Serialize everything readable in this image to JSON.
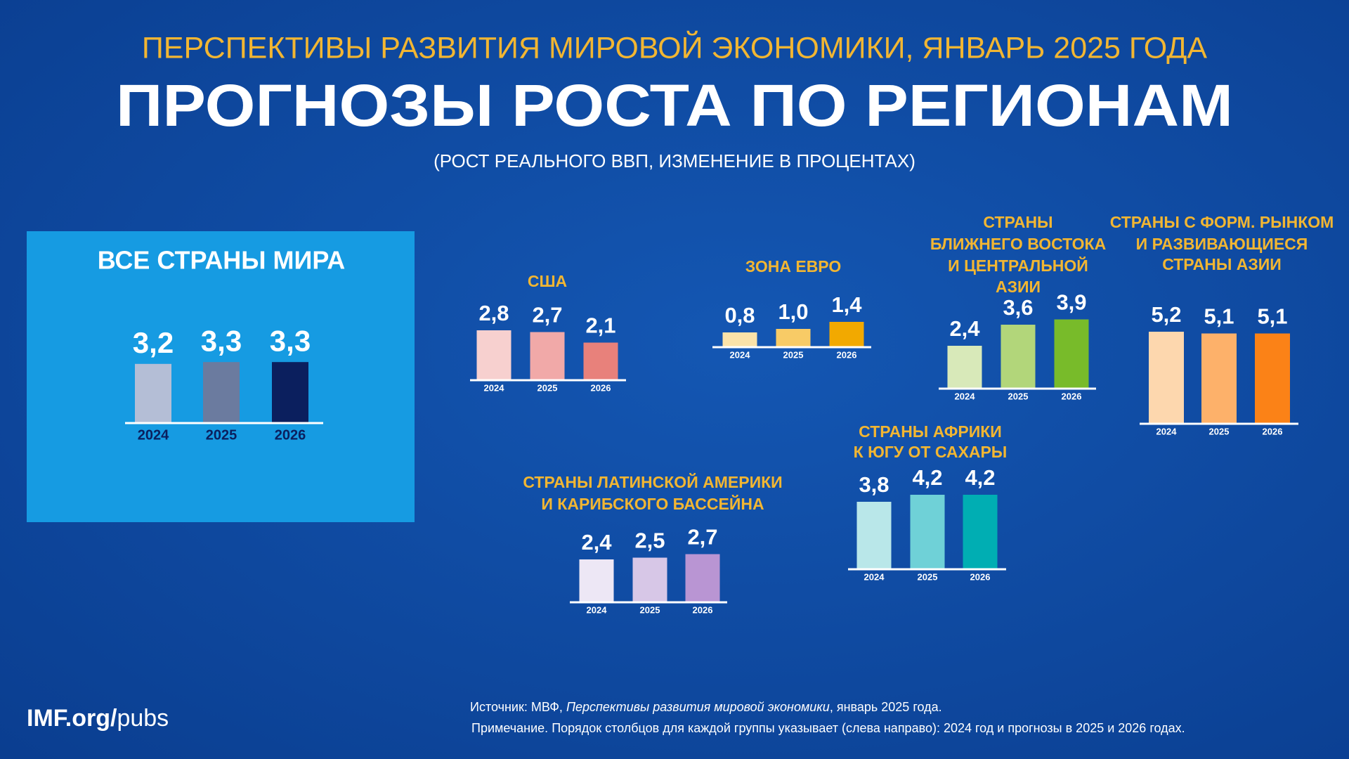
{
  "header": {
    "kicker": "ПЕРСПЕКТИВЫ РАЗВИТИЯ МИРОВОЙ ЭКОНОМИКИ, ЯНВАРЬ 2025 ГОДА",
    "title": "ПРОГНОЗЫ РОСТА ПО РЕГИОНАМ",
    "subtitle": "(РОСТ РЕАЛЬНОГО ВВП, ИЗМЕНЕНИЕ В ПРОЦЕНТАХ)"
  },
  "chart_data": [
    {
      "type": "bar",
      "title": [
        "ВСЕ СТРАНЫ МИРА"
      ],
      "categories": [
        "2024",
        "2025",
        "2026"
      ],
      "values": [
        3.2,
        3.3,
        3.3
      ],
      "value_labels": [
        "3,2",
        "3,3",
        "3,3"
      ],
      "colors": [
        "#b4bed6",
        "#6b7b9f",
        "#0b1f5e"
      ]
    },
    {
      "type": "bar",
      "title": [
        "США"
      ],
      "categories": [
        "2024",
        "2025",
        "2026"
      ],
      "values": [
        2.8,
        2.7,
        2.1
      ],
      "value_labels": [
        "2,8",
        "2,7",
        "2,1"
      ],
      "colors": [
        "#f7d0cf",
        "#f1a9a8",
        "#e8817b"
      ]
    },
    {
      "type": "bar",
      "title": [
        "ЗОНА ЕВРО"
      ],
      "categories": [
        "2024",
        "2025",
        "2026"
      ],
      "values": [
        0.8,
        1.0,
        1.4
      ],
      "value_labels": [
        "0,8",
        "1,0",
        "1,4"
      ],
      "colors": [
        "#fbe3a9",
        "#f8cb66",
        "#f2a900"
      ]
    },
    {
      "type": "bar",
      "title": [
        "СТРАНЫ",
        "БЛИЖНЕГО ВОСТОКА",
        "И ЦЕНТРАЛЬНОЙ",
        "АЗИИ"
      ],
      "categories": [
        "2024",
        "2025",
        "2026"
      ],
      "values": [
        2.4,
        3.6,
        3.9
      ],
      "value_labels": [
        "2,4",
        "3,6",
        "3,9"
      ],
      "colors": [
        "#d8e9b9",
        "#b2d67a",
        "#78bb2a"
      ]
    },
    {
      "type": "bar",
      "title": [
        "СТРАНЫ С ФОРМ. РЫНКОМ",
        "И РАЗВИВАЮЩИЕСЯ",
        "СТРАНЫ АЗИИ"
      ],
      "categories": [
        "2024",
        "2025",
        "2026"
      ],
      "values": [
        5.2,
        5.1,
        5.1
      ],
      "value_labels": [
        "5,2",
        "5,1",
        "5,1"
      ],
      "colors": [
        "#fdd7ae",
        "#fdb16a",
        "#fb8217"
      ]
    },
    {
      "type": "bar",
      "title": [
        "СТРАНЫ ЛАТИНСКОЙ АМЕРИКИ",
        "И КАРИБСКОГО БАССЕЙНА"
      ],
      "categories": [
        "2024",
        "2025",
        "2026"
      ],
      "values": [
        2.4,
        2.5,
        2.7
      ],
      "value_labels": [
        "2,4",
        "2,5",
        "2,7"
      ],
      "colors": [
        "#ede7f5",
        "#d7c7e7",
        "#b995d3"
      ]
    },
    {
      "type": "bar",
      "title": [
        "СТРАНЫ АФРИКИ",
        "К ЮГУ ОТ САХАРЫ"
      ],
      "categories": [
        "2024",
        "2025",
        "2026"
      ],
      "values": [
        3.8,
        4.2,
        4.2
      ],
      "value_labels": [
        "3,8",
        "4,2",
        "4,2"
      ],
      "colors": [
        "#b9e7e9",
        "#6fd1d7",
        "#00aeb3"
      ]
    }
  ],
  "footer": {
    "logo": [
      "IMF.org/",
      "pubs"
    ],
    "source": [
      "Источник: МВФ, ",
      "Перспективы развития мировой экономики",
      ", январь 2025 года."
    ],
    "note": "Примечание. Порядок столбцов для каждой группы указывает (слева направо): 2024 год и прогнозы в 2025 и 2026 годах."
  }
}
